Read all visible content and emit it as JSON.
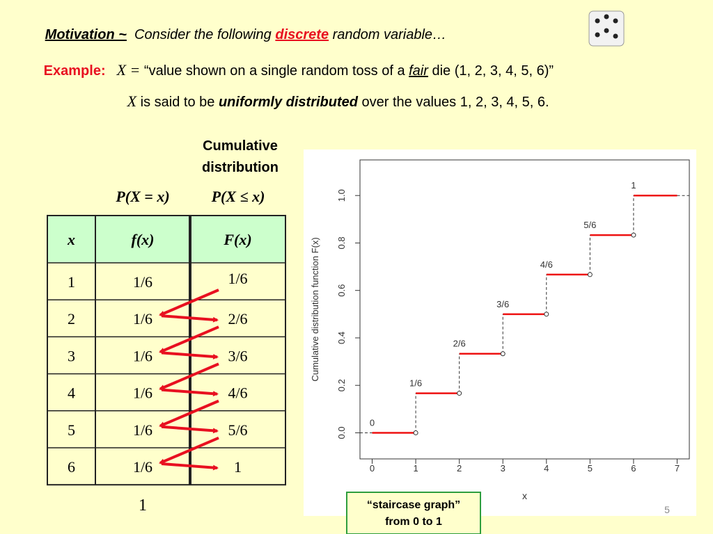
{
  "header": {
    "motivation": "Motivation ~",
    "consider": "  Consider the following ",
    "discrete": "discrete",
    "random_variable": " random variable…",
    "example": "Example:",
    "x_equals": "X = ",
    "quote_start": "“value shown on a single random toss of a ",
    "fair": "fair",
    "quote_end": " die (1, 2, 3, 4, 5, 6)”",
    "x2": "X",
    "said": " is said to be ",
    "uniform": "uniformly distributed",
    "over": " over the values 1, 2, 3, 4, 5, 6."
  },
  "table_labels": {
    "cumulative": [
      "Cumulative",
      "distribution"
    ],
    "pmf": "P(X = x)",
    "cdf": "P(X ≤ x)",
    "sum": "1"
  },
  "table": {
    "headers": [
      "x",
      "f(x)",
      "F(x)"
    ],
    "rows": [
      [
        "1",
        "1/6",
        "1/6"
      ],
      [
        "2",
        "1/6",
        "2/6"
      ],
      [
        "3",
        "1/6",
        "3/6"
      ],
      [
        "4",
        "1/6",
        "4/6"
      ],
      [
        "5",
        "1/6",
        "5/6"
      ],
      [
        "6",
        "1/6",
        "1"
      ]
    ]
  },
  "chart_data": {
    "type": "step",
    "x_label": "x",
    "y_label": "Cumulative distribution function F(x)",
    "series": [
      {
        "color": "#ee1111",
        "x": [
          0,
          1,
          2,
          3,
          4,
          5,
          6
        ],
        "values": [
          0,
          0.1667,
          0.3333,
          0.5,
          0.6667,
          0.8333,
          1
        ],
        "value_labels": [
          "0",
          "1/6",
          "2/6",
          "3/6",
          "4/6",
          "5/6",
          "1"
        ]
      }
    ],
    "xlim": [
      -0.28,
      7.28
    ],
    "ylim": [
      -0.11,
      1.15
    ],
    "xticks": [
      0,
      1,
      2,
      3,
      4,
      5,
      6,
      7
    ],
    "yticks": [
      {
        "value": 0,
        "label": "0.0"
      },
      0.2,
      0.4,
      0.6,
      0.8,
      {
        "value": 1,
        "label": "1.0"
      }
    ]
  },
  "note": [
    "“staircase graph”",
    "from 0 to 1"
  ],
  "page_number": "5"
}
